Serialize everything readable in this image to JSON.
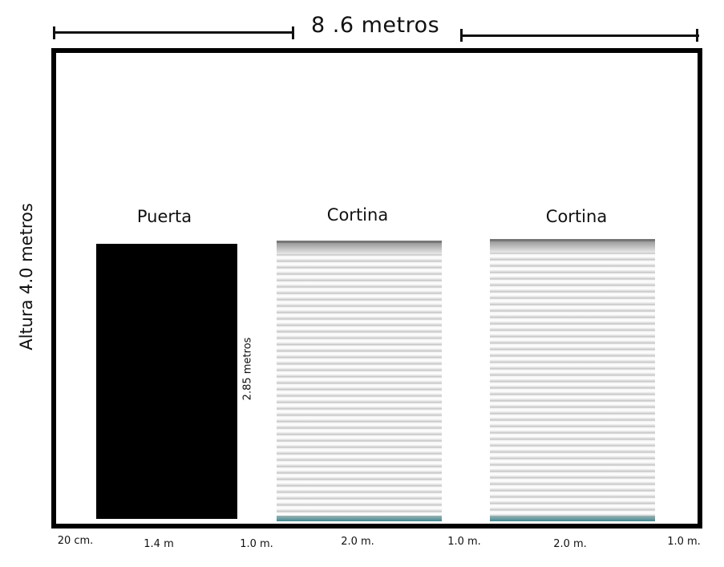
{
  "dimensions": {
    "total_width": "8 .6 metros",
    "height": "Altura 4.0 metros",
    "door_height": "2.85 metros"
  },
  "openings": [
    {
      "label": "Puerta",
      "type": "door"
    },
    {
      "label": "Cortina",
      "type": "curtain"
    },
    {
      "label": "Cortina",
      "type": "curtain"
    }
  ],
  "segments": [
    "20 cm.",
    "1.4 m",
    "1.0 m.",
    "2.0 m.",
    "1.0 m.",
    "2.0 m.",
    "1.0 m."
  ],
  "colors": {
    "wall": "#000000",
    "door": "#000000",
    "curtain": "#f3f4f3",
    "curtain_base": "#3f8a92"
  }
}
